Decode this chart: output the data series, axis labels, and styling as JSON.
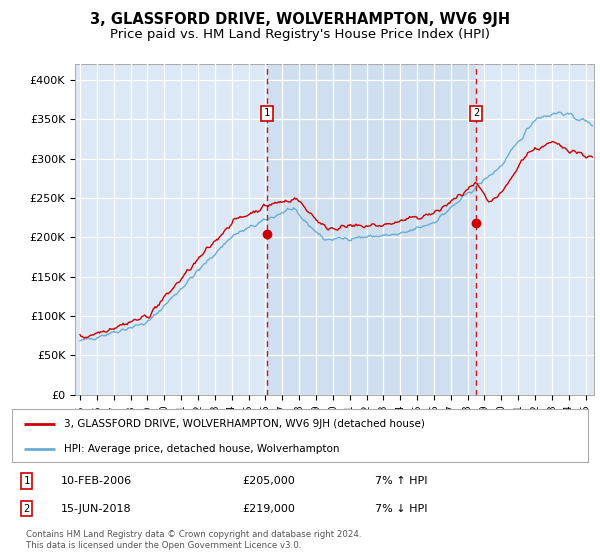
{
  "title": "3, GLASSFORD DRIVE, WOLVERHAMPTON, WV6 9JH",
  "subtitle": "Price paid vs. HM Land Registry's House Price Index (HPI)",
  "background_color": "#dce8f5",
  "plot_bg_color": "#dce8f5",
  "grid_color": "#ffffff",
  "fill_color": "#c5d8ed",
  "ylim": [
    0,
    420000
  ],
  "yticks": [
    0,
    50000,
    100000,
    150000,
    200000,
    250000,
    300000,
    350000,
    400000
  ],
  "ytick_labels": [
    "£0",
    "£50K",
    "£100K",
    "£150K",
    "£200K",
    "£250K",
    "£300K",
    "£350K",
    "£400K"
  ],
  "t1_x": 2006.1,
  "t2_x": 2018.5,
  "t1_price": 205000,
  "t2_price": 219000,
  "annotation1": {
    "text": "10-FEB-2006",
    "price": "£205,000",
    "pct": "7% ↑ HPI"
  },
  "annotation2": {
    "text": "15-JUN-2018",
    "price": "£219,000",
    "pct": "7% ↓ HPI"
  },
  "legend_label1": "3, GLASSFORD DRIVE, WOLVERHAMPTON, WV6 9JH (detached house)",
  "legend_label2": "HPI: Average price, detached house, Wolverhampton",
  "footer": "Contains HM Land Registry data © Crown copyright and database right 2024.\nThis data is licensed under the Open Government Licence v3.0.",
  "line1_color": "#cc0000",
  "line2_color": "#6aaed6",
  "title_fontsize": 10.5,
  "subtitle_fontsize": 9.5,
  "xmin": 1994.7,
  "xmax": 2025.5
}
